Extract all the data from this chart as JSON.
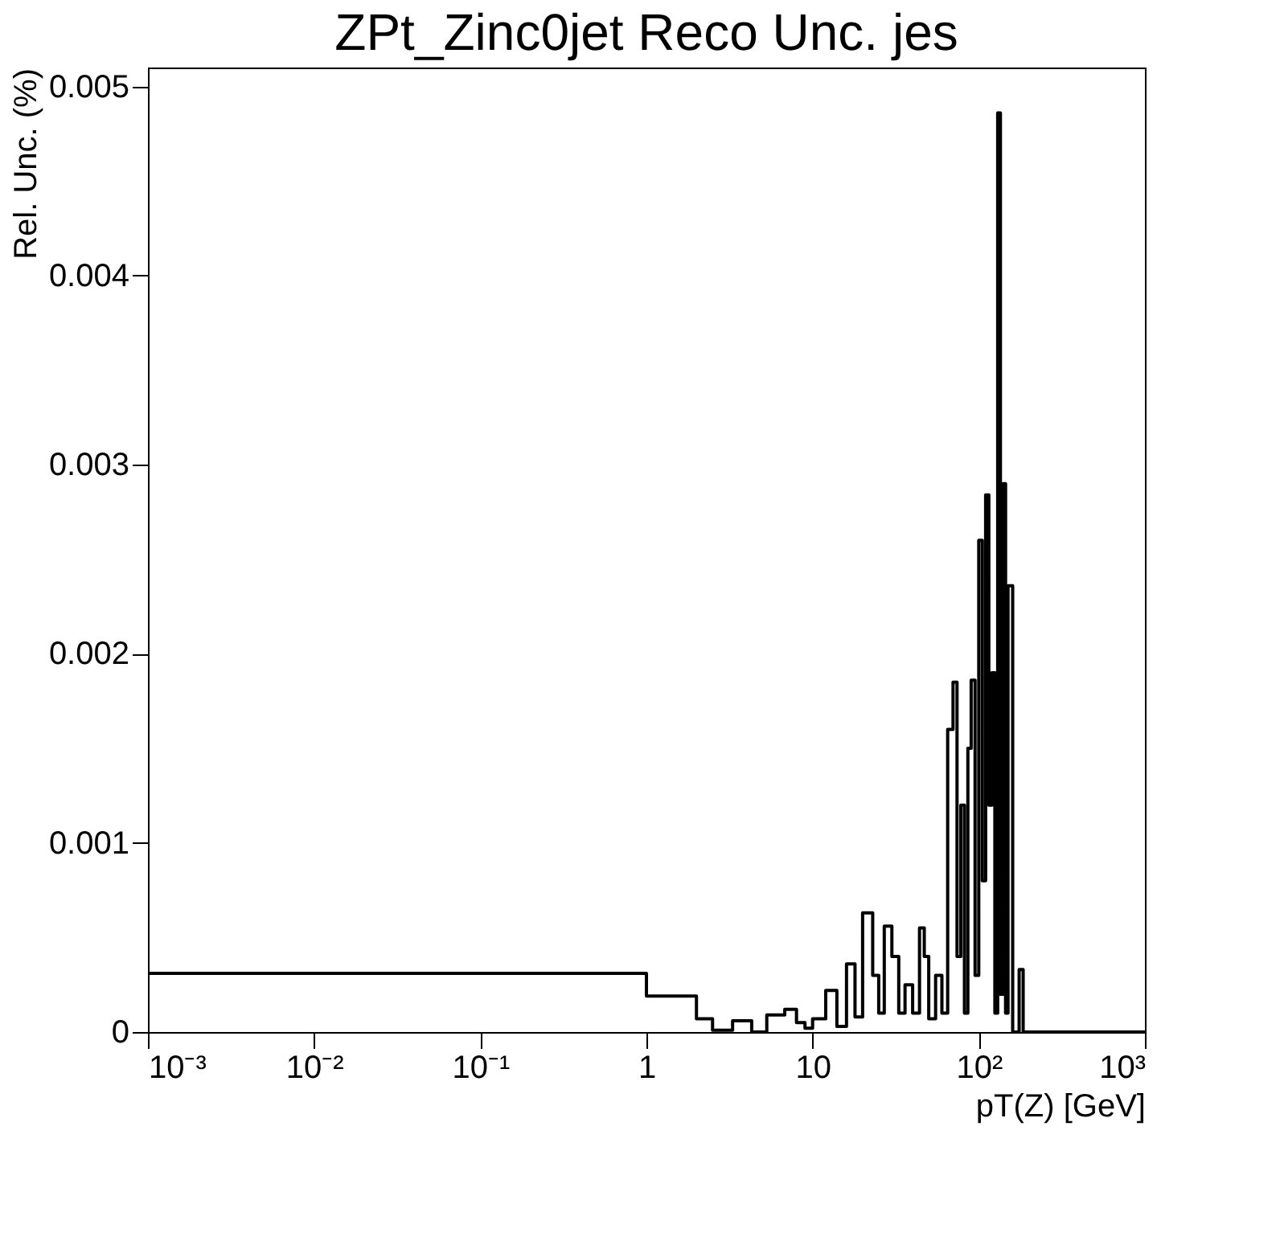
{
  "chart_data": {
    "type": "histogram",
    "title": "ZPt_Zinc0jet Reco Unc. jes",
    "xlabel": "pT(Z) [GeV]",
    "ylabel": "Rel. Unc. (%)",
    "log": "x",
    "grid": false,
    "color": "#000000",
    "bins": [
      0.001,
      1,
      2,
      2.5,
      3.3,
      4.3,
      5.3,
      6.8,
      8,
      9,
      10,
      12,
      14,
      16,
      18,
      20,
      23,
      25,
      27,
      30,
      33,
      36,
      40,
      44,
      47,
      50,
      55,
      60,
      65,
      70,
      74,
      78,
      82,
      86,
      90,
      95,
      100,
      105,
      110,
      115,
      120,
      125,
      130,
      135,
      140,
      145,
      150,
      160,
      175,
      185,
      1000
    ],
    "values": [
      0.00031,
      0.00019,
      7e-05,
      1e-05,
      6e-05,
      0,
      9e-05,
      0.00012,
      5e-05,
      2e-05,
      7e-05,
      0.00022,
      3e-05,
      0.00036,
      8e-05,
      0.00063,
      0.0003,
      0.0001,
      0.00056,
      0.0004,
      0.0001,
      0.00025,
      0.0001,
      0.00055,
      0.0004,
      7e-05,
      0.0003,
      0.0001,
      0.0016,
      0.00185,
      0.0004,
      0.0012,
      0.0001,
      0.0015,
      0.00186,
      0.0003,
      0.0026,
      0.0008,
      0.00284,
      0.0012,
      0.0019,
      0.0001,
      0.00486,
      0.0002,
      0.0029,
      0.0001,
      0.00236,
      0,
      0.00033,
      0
    ],
    "xlim": [
      0.001,
      1000
    ],
    "xticks": [
      {
        "value": 0.001,
        "label": "10⁻³"
      },
      {
        "value": 0.01,
        "label": "10⁻²"
      },
      {
        "value": 0.1,
        "label": "10⁻¹"
      },
      1,
      10,
      {
        "value": 100,
        "label": "10²"
      },
      {
        "value": 1000,
        "label": "10³"
      }
    ],
    "ylim": [
      0,
      0.0051
    ],
    "yticks": [
      0,
      0.001,
      0.002,
      0.003,
      0.004,
      0.005
    ]
  }
}
